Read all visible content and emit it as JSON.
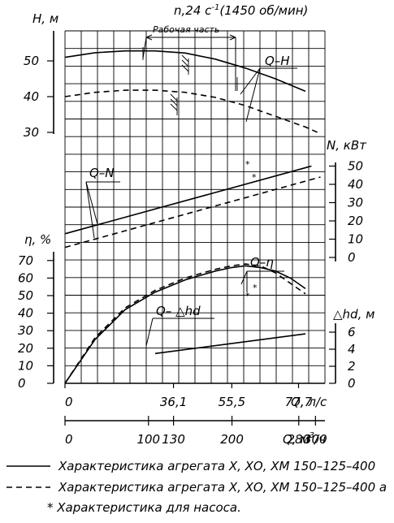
{
  "header": {
    "speed_prefix": "n,24 c",
    "speed_exp": "-1",
    "speed_suffix": "(1450 об/мин)"
  },
  "axes": {
    "h_label": "H, м",
    "h_ticks": [
      "50",
      "40",
      "30"
    ],
    "n_label": "N, кВт",
    "n_ticks": [
      "50",
      "40",
      "30",
      "20",
      "10",
      "0"
    ],
    "eta_label": "η, %",
    "eta_ticks": [
      "70",
      "60",
      "50",
      "40",
      "30",
      "20",
      "10",
      "0"
    ],
    "dh_label": "△hd, м",
    "dh_ticks": [
      "6",
      "4",
      "2",
      "0"
    ],
    "q_ls_label": "Q, л/с",
    "q_ls_ticks": [
      "0",
      "36,1",
      "55,5",
      "77,7"
    ],
    "q_m3_label_main": "Q, м",
    "q_m3_label_sup": "3",
    "q_m3_label_end": "/ч",
    "q_m3_ticks": [
      "0",
      "100",
      "130",
      "200",
      "280",
      "300"
    ]
  },
  "annotations": {
    "working_zone": "Рабочая часть",
    "qh": "Q–H",
    "qn": "Q–N",
    "qeta": "Q–η",
    "qdh": "Q– △hd",
    "pump_mark": "*"
  },
  "legend": {
    "solid": "Характеристика агрегата Х, ХО, ХМ 150–125–400",
    "dashed": "Характеристика агрегата Х, ХО, ХМ 150–125–400 а",
    "star": "* Характеристика для насоса."
  },
  "chart_data": {
    "type": "line",
    "x_unit": "л/с",
    "x_range": [
      0,
      90
    ],
    "working_range_ls": [
      36.1,
      77.7
    ],
    "series": {
      "H_solid": {
        "x": [
          0,
          10,
          20,
          30,
          40,
          50,
          60,
          70,
          80
        ],
        "y": [
          51,
          52.3,
          52.8,
          52.8,
          52.2,
          50.5,
          48,
          45,
          41.5
        ]
      },
      "H_dashed": {
        "x": [
          0,
          10,
          20,
          30,
          40,
          50,
          60,
          70,
          80,
          84
        ],
        "y": [
          40,
          41.2,
          41.8,
          41.8,
          41.2,
          39.8,
          37.5,
          34.5,
          31.5,
          30
        ]
      },
      "N_solid": {
        "x": [
          0,
          82
        ],
        "y": [
          13,
          50
        ]
      },
      "N_dashed": {
        "x": [
          0,
          85
        ],
        "y": [
          5.5,
          44
        ]
      },
      "eta_solid": {
        "x": [
          0,
          10,
          20,
          30,
          40,
          50,
          55.5,
          60,
          65,
          70,
          75,
          80
        ],
        "y": [
          0,
          25,
          42,
          52,
          59,
          64,
          66,
          67,
          66,
          64,
          60,
          54
        ]
      },
      "eta_dashed": {
        "x": [
          0,
          10,
          20,
          30,
          40,
          50,
          55.5,
          60,
          65,
          70,
          75,
          80
        ],
        "y": [
          0,
          26,
          43,
          53,
          60,
          65,
          67,
          68,
          67,
          63,
          57,
          51
        ]
      },
      "dh_solid": {
        "x": [
          30,
          80
        ],
        "y": [
          3.5,
          5.8
        ]
      }
    }
  }
}
